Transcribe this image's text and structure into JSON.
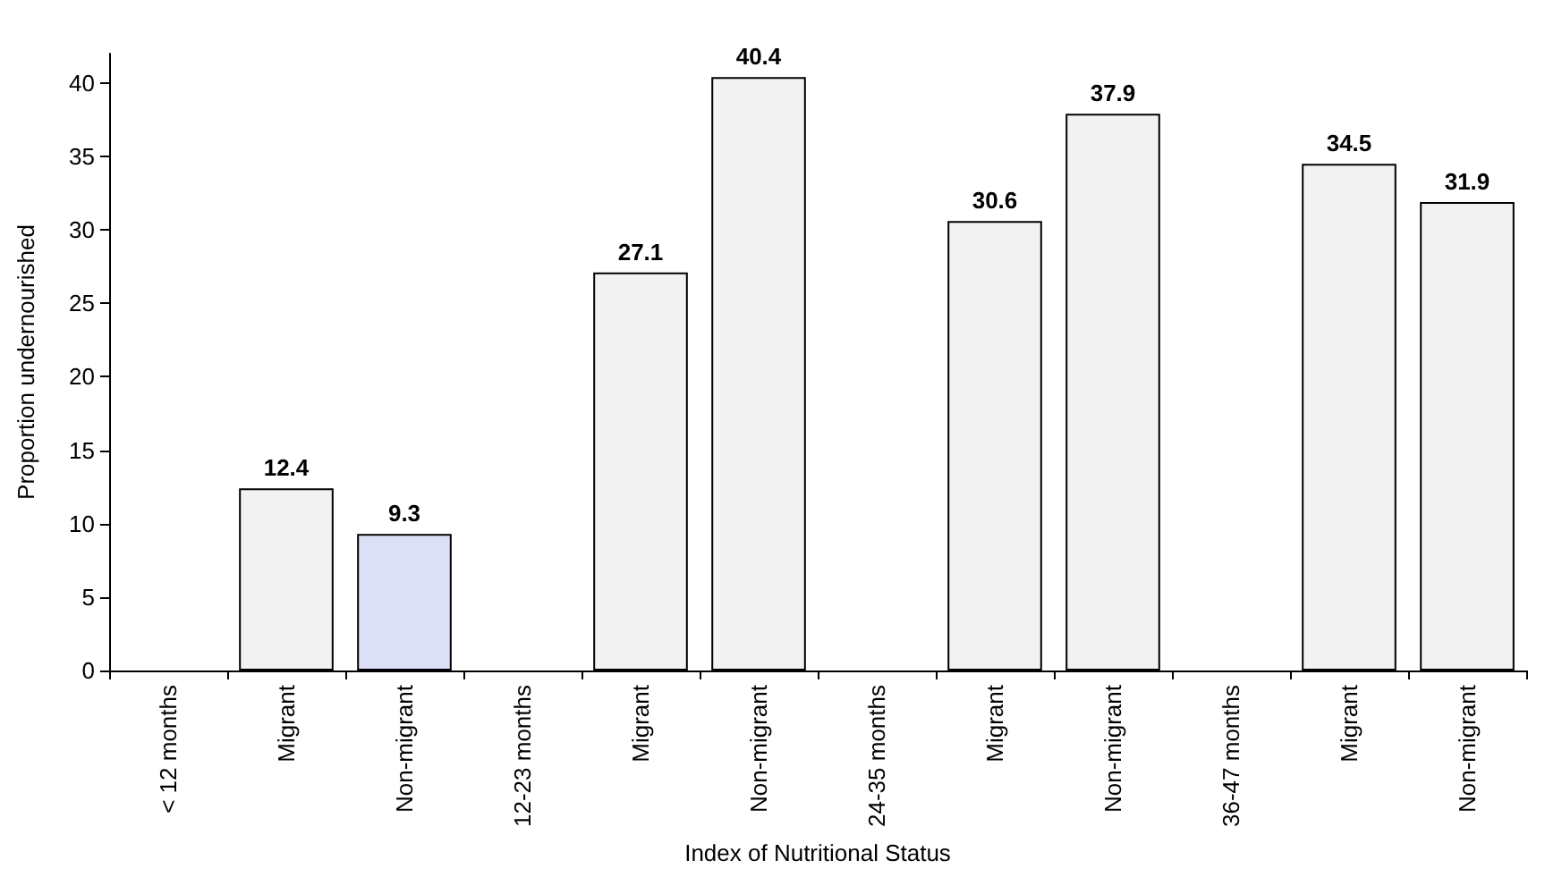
{
  "chart_data": {
    "type": "bar",
    "xlabel": "Index of Nutritional Status",
    "ylabel": "Proportion undernourished",
    "categories": [
      "< 12 months",
      "Migrant",
      "Non-migrant",
      "12-23 months",
      "Migrant",
      "Non-migrant",
      "24-35 months",
      "Migrant",
      "Non-migrant",
      "36-47 months",
      "Migrant",
      "Non-migrant"
    ],
    "values": [
      null,
      12.4,
      9.3,
      null,
      27.1,
      40.4,
      null,
      30.6,
      37.9,
      null,
      34.5,
      31.9
    ],
    "colors": [
      "#f2f2f2",
      "#f2f2f2",
      "#dcdff5",
      "#f2f2f2",
      "#f2f2f2",
      "#f2f2f2",
      "#f2f2f2",
      "#f2f2f2",
      "#f2f2f2",
      "#f2f2f2",
      "#f2f2f2",
      "#f2f2f2"
    ],
    "ylim": [
      0,
      42
    ],
    "yticks": [
      0,
      5,
      10,
      15,
      20,
      25,
      30,
      35,
      40
    ],
    "data_labels": true,
    "grid": false
  }
}
